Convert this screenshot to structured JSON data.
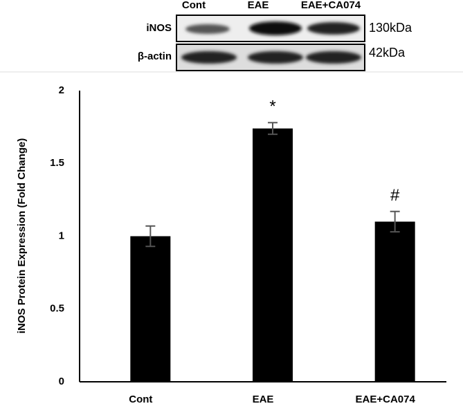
{
  "blot": {
    "lanes": [
      "Cont",
      "EAE",
      "EAE+CA074"
    ],
    "rows": [
      {
        "name": "iNOS",
        "size": "130kDa"
      },
      {
        "name": "β-actin",
        "size": "42kDa"
      }
    ]
  },
  "chart_data": {
    "type": "bar",
    "y_label": "iNOS Protein Expression (Fold Change)",
    "categories": [
      "Cont",
      "EAE",
      "EAE+CA074"
    ],
    "values": [
      1.0,
      1.74,
      1.1
    ],
    "errors": [
      0.07,
      0.04,
      0.07
    ],
    "annotations": [
      {
        "category": "EAE",
        "text": "*"
      },
      {
        "category": "EAE+CA074",
        "text": "#"
      }
    ],
    "color": "#000000",
    "ylim": [
      0,
      2
    ],
    "yticks": [
      0,
      0.5,
      1,
      1.5,
      2
    ],
    "grid": false
  }
}
